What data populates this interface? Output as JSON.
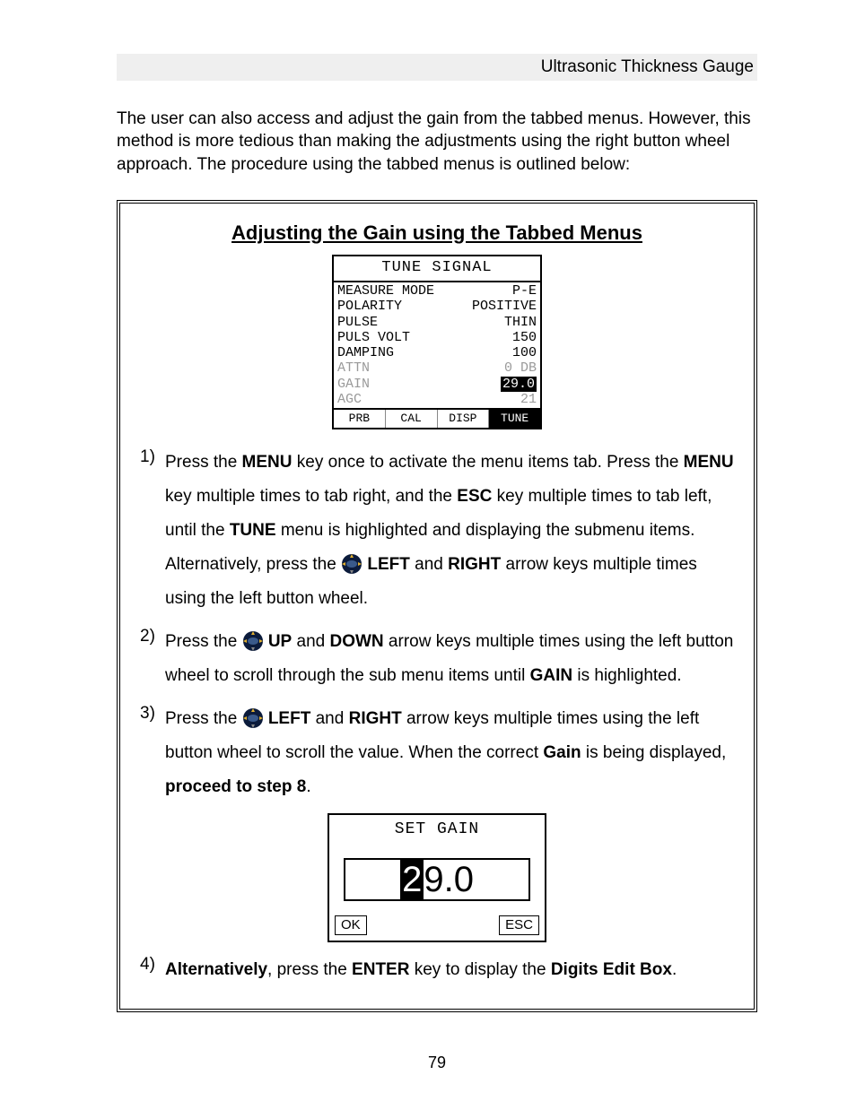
{
  "header": {
    "title": "Ultrasonic Thickness Gauge"
  },
  "intro": "The user can also access and adjust the gain from the tabbed menus.  However, this method is more tedious than making the adjustments using the right button wheel approach.  The procedure using the tabbed menus is outlined below:",
  "frame": {
    "title": "Adjusting the Gain using the Tabbed Menus",
    "tune_signal": {
      "title": "TUNE SIGNAL",
      "rows": [
        {
          "label": "MEASURE MODE",
          "value": "P-E",
          "dim": false,
          "hl": false
        },
        {
          "label": "POLARITY",
          "value": "POSITIVE",
          "dim": false,
          "hl": false
        },
        {
          "label": "PULSE",
          "value": "THIN",
          "dim": false,
          "hl": false
        },
        {
          "label": "PULS VOLT",
          "value": "150",
          "dim": false,
          "hl": false
        },
        {
          "label": "DAMPING",
          "value": "100",
          "dim": false,
          "hl": false
        },
        {
          "label": "ATTN",
          "value": "0 DB",
          "dim": true,
          "hl": false
        },
        {
          "label": "GAIN",
          "value": "29.0",
          "dim": true,
          "hl": true
        },
        {
          "label": "AGC",
          "value": "21",
          "dim": true,
          "hl": false
        }
      ],
      "tabs": [
        {
          "label": "PRB",
          "selected": false
        },
        {
          "label": "CAL",
          "selected": false
        },
        {
          "label": "DISP",
          "selected": false
        },
        {
          "label": "TUNE",
          "selected": true
        }
      ]
    },
    "set_gain": {
      "title": "SET GAIN",
      "digits": {
        "d1": "2",
        "d2": "9",
        "sep": ".",
        "d3": "0"
      },
      "ok": "OK",
      "esc": "ESC"
    },
    "steps": {
      "s1": {
        "num": "1)",
        "t1": " Press the ",
        "k1": "MENU",
        "t2": " key once to activate the menu items tab.  Press the ",
        "k2": "MENU",
        "t3": " key multiple times to tab right, and the ",
        "k3": "ESC",
        "t4": " key multiple times to tab left, until the ",
        "k4": "TUNE",
        "t5": " menu is highlighted and displaying the submenu items.  Alternatively, press the ",
        "k5": "LEFT",
        "and1": " and ",
        "k6": "RIGHT",
        "t6": " arrow keys multiple times using the left button wheel."
      },
      "s2": {
        "num": "2)",
        "t1": "Press the ",
        "k1": "UP",
        "and1": " and ",
        "k2": "DOWN",
        "t2": " arrow keys multiple times using the left button wheel to scroll through the sub menu items until ",
        "k3": "GAIN",
        "t3": " is highlighted."
      },
      "s3": {
        "num": "3)",
        "t1": " Press the ",
        "k1": "LEFT",
        "and1": " and ",
        "k2": "RIGHT",
        "t2": " arrow keys multiple times using the left button wheel to scroll the value.  When the correct ",
        "k3": "Gain",
        "t3": " is being displayed, ",
        "k4": "proceed to step 8",
        "t4": "."
      },
      "s4": {
        "num": "4)",
        "k1": "Alternatively",
        "t1": ", press the ",
        "k2": "ENTER",
        "t2": " key to display the ",
        "k3": "Digits Edit Box",
        "t3": "."
      }
    }
  },
  "page_number": "79",
  "colors": {
    "bg": "#ffffff",
    "text": "#000000",
    "dim": "#9a9a9a",
    "header_bg": "#efefef"
  }
}
